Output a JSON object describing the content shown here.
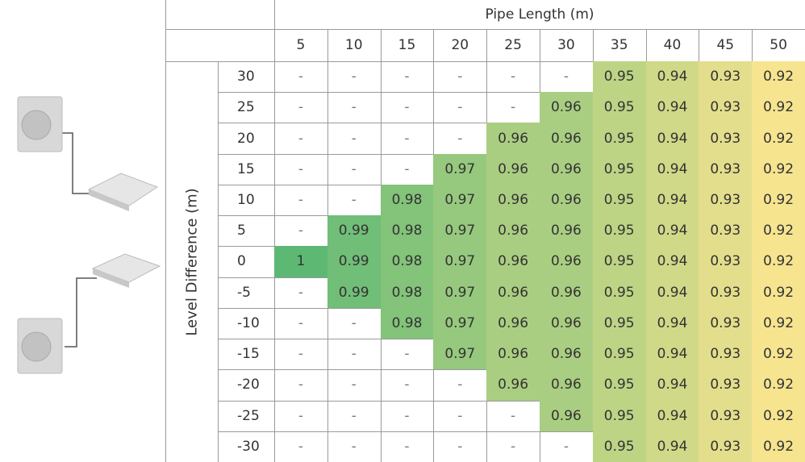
{
  "table": {
    "title": "Pipe Length (m)",
    "row_label": "Level Difference (m)",
    "columns": [
      5,
      10,
      15,
      20,
      25,
      30,
      35,
      40,
      45,
      50
    ],
    "rows": [
      {
        "label": 30,
        "cells": [
          "-",
          "-",
          "-",
          "-",
          "-",
          "-",
          0.95,
          0.94,
          0.93,
          0.92
        ]
      },
      {
        "label": 25,
        "cells": [
          "-",
          "-",
          "-",
          "-",
          "-",
          0.96,
          0.95,
          0.94,
          0.93,
          0.92
        ]
      },
      {
        "label": 20,
        "cells": [
          "-",
          "-",
          "-",
          "-",
          0.96,
          0.96,
          0.95,
          0.94,
          0.93,
          0.92
        ]
      },
      {
        "label": 15,
        "cells": [
          "-",
          "-",
          "-",
          0.97,
          0.96,
          0.96,
          0.95,
          0.94,
          0.93,
          0.92
        ]
      },
      {
        "label": 10,
        "cells": [
          "-",
          "-",
          0.98,
          0.97,
          0.96,
          0.96,
          0.95,
          0.94,
          0.93,
          0.92
        ]
      },
      {
        "label": 5,
        "cells": [
          "-",
          0.99,
          0.98,
          0.97,
          0.96,
          0.96,
          0.95,
          0.94,
          0.93,
          0.92
        ]
      },
      {
        "label": 0,
        "cells": [
          1,
          0.99,
          0.98,
          0.97,
          0.96,
          0.96,
          0.95,
          0.94,
          0.93,
          0.92
        ]
      },
      {
        "label": -5,
        "cells": [
          "-",
          0.99,
          0.98,
          0.97,
          0.96,
          0.96,
          0.95,
          0.94,
          0.93,
          0.92
        ]
      },
      {
        "label": -10,
        "cells": [
          "-",
          "-",
          0.98,
          0.97,
          0.96,
          0.96,
          0.95,
          0.94,
          0.93,
          0.92
        ]
      },
      {
        "label": -15,
        "cells": [
          "-",
          "-",
          "-",
          0.97,
          0.96,
          0.96,
          0.95,
          0.94,
          0.93,
          0.92
        ]
      },
      {
        "label": -20,
        "cells": [
          "-",
          "-",
          "-",
          "-",
          0.96,
          0.96,
          0.95,
          0.94,
          0.93,
          0.92
        ]
      },
      {
        "label": -25,
        "cells": [
          "-",
          "-",
          "-",
          "-",
          "-",
          0.96,
          0.95,
          0.94,
          0.93,
          0.92
        ]
      },
      {
        "label": -30,
        "cells": [
          "-",
          "-",
          "-",
          "-",
          "-",
          "-",
          0.95,
          0.94,
          0.93,
          0.92
        ]
      }
    ]
  }
}
